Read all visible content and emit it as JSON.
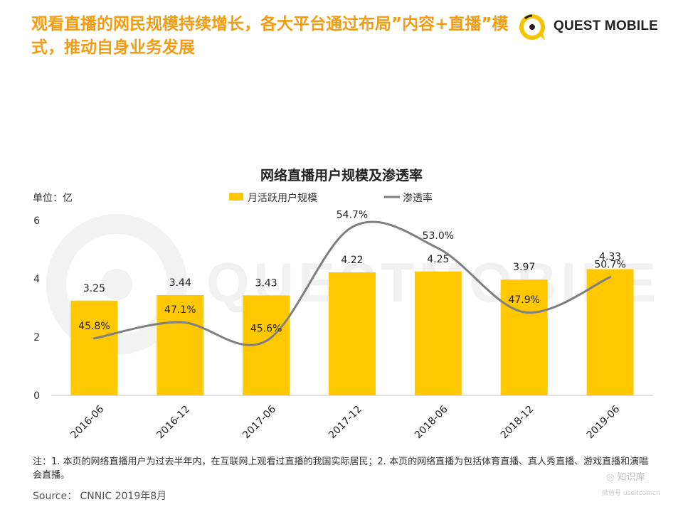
{
  "headline": "观看直播的网民规模持续增长，各大平台通过布局”内容+直播”模式，推动自身业务发展",
  "brand": {
    "name": "QUEST MOBILE",
    "watermark": "QUESTMOBILE",
    "accent": "#f5c400"
  },
  "chart_data": {
    "type": "bar",
    "title": "网络直播用户规模及渗透率",
    "unit_label": "单位：亿",
    "categories": [
      "2016-06",
      "2016-12",
      "2017-06",
      "2017-12",
      "2018-06",
      "2018-12",
      "2019-06"
    ],
    "series": [
      {
        "name": "月活跃用户规模",
        "kind": "bar",
        "color": "#ffc800",
        "values": [
          3.25,
          3.44,
          3.43,
          4.22,
          4.25,
          3.97,
          4.33
        ],
        "labels": [
          "3.25",
          "3.44",
          "3.43",
          "4.22",
          "4.25",
          "3.97",
          "4.33"
        ]
      },
      {
        "name": "渗透率",
        "kind": "line",
        "color": "#7f7f7f",
        "values": [
          45.8,
          47.1,
          45.6,
          54.7,
          53.0,
          47.9,
          50.7
        ],
        "labels": [
          "45.8%",
          "47.1%",
          "45.6%",
          "54.7%",
          "53.0%",
          "47.9%",
          "50.7%"
        ]
      }
    ],
    "y_ticks": [
      "0",
      "2",
      "4",
      "6"
    ],
    "ylim": [
      0,
      6
    ],
    "legend_position": "top"
  },
  "note": "注：1. 本页的网络直播用户为过去半年内，在互联网上观看过直播的我国实际居民；2. 本页的网络直播为包括体育直播、真人秀直播、游戏直播和演唱会直播。",
  "source": "Source： CNNIC 2019年8月",
  "corner": {
    "label": "知识库",
    "sub": "微信号 useitcomcn"
  }
}
